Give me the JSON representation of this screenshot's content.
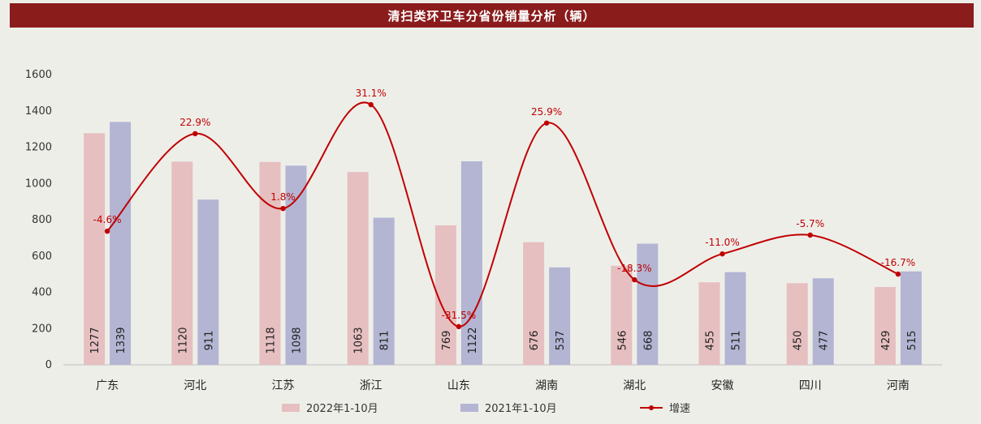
{
  "title": "清扫类环卫车分省份销量分析（辆）",
  "colors": {
    "bar_2022": "#e6bfc0",
    "bar_2021": "#b3b5d3",
    "growth_line": "#c00000",
    "title_bg": "#8b1c1c"
  },
  "chart_data": {
    "type": "bar",
    "categories": [
      "广东",
      "河北",
      "江苏",
      "浙江",
      "山东",
      "湖南",
      "湖北",
      "安徽",
      "四川",
      "河南"
    ],
    "series": [
      {
        "name": "2022年1-10月",
        "type": "bar",
        "values": [
          1277,
          1120,
          1118,
          1063,
          769,
          676,
          546,
          455,
          450,
          429
        ]
      },
      {
        "name": "2021年1-10月",
        "type": "bar",
        "values": [
          1339,
          911,
          1098,
          811,
          1122,
          537,
          668,
          511,
          477,
          515
        ]
      },
      {
        "name": "增速",
        "type": "line",
        "values": [
          -4.6,
          22.9,
          1.8,
          31.1,
          -31.5,
          25.9,
          -18.3,
          -11.0,
          -5.7,
          -16.7
        ],
        "labels": [
          "-4.6%",
          "22.9%",
          "1.8%",
          "31.1%",
          "-31.5%",
          "25.9%",
          "-18.3%",
          "-11.0%",
          "-5.7%",
          "-16.7%"
        ]
      }
    ],
    "y_ticks": [
      0,
      200,
      400,
      600,
      800,
      1000,
      1200,
      1400,
      1600
    ],
    "ylim": [
      0,
      1600
    ],
    "legend_position": "bottom"
  }
}
